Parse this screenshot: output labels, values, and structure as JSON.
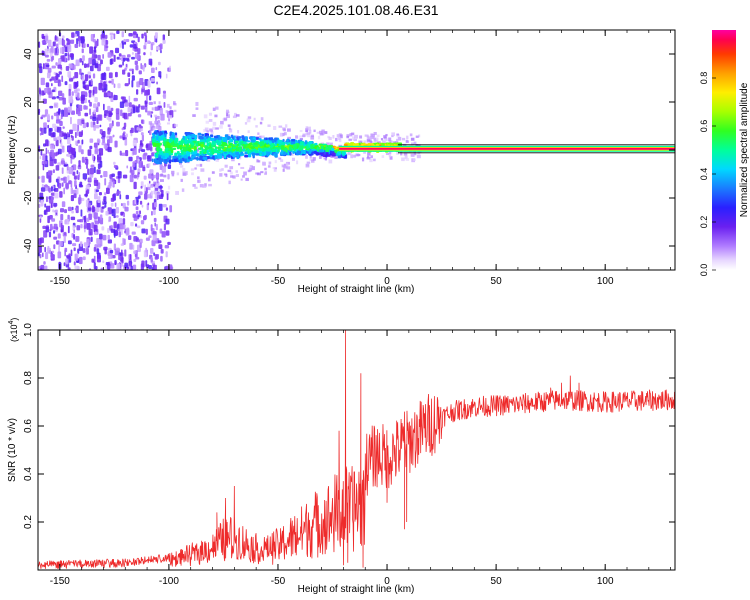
{
  "title": "C2E4.2025.101.08.46.E31",
  "chart_data": [
    {
      "type": "heatmap",
      "xlabel": "Height of straight line (km)",
      "ylabel": "Frequency (Hz)",
      "xlim": [
        -160,
        132
      ],
      "ylim": [
        -50,
        50
      ],
      "xticks": [
        -150,
        -100,
        -50,
        0,
        50,
        100
      ],
      "yticks": [
        -40,
        -20,
        0,
        20,
        40
      ],
      "colorbar": {
        "label": "Normalized spectral amplitude",
        "range": [
          0,
          1
        ],
        "ticks": [
          "0.0",
          "0.2",
          "0.4",
          "0.6",
          "0.8"
        ]
      },
      "features": {
        "noise_region_x": [
          -160,
          -100
        ],
        "scatter_band_x": [
          -108,
          5
        ],
        "carrier_line_x": [
          5,
          132
        ],
        "carrier_freq_hz": 0.5,
        "carrier_amplitude": 0.97
      }
    },
    {
      "type": "line",
      "xlabel": "Height of straight line (km)",
      "ylabel": "SNR (10 * v/v)",
      "yscale_label": "(x10",
      "yscale_exp": "4",
      "xlim": [
        -160,
        132
      ],
      "ylim": [
        0,
        1.0
      ],
      "xticks": [
        -150,
        -100,
        -50,
        0,
        50,
        100
      ],
      "yticks": [
        "0.2",
        "0.4",
        "0.6",
        "0.8",
        "1.0"
      ],
      "series": [
        {
          "color": "#ee2b2b",
          "envelope": [
            {
              "x": -160,
              "y": 0.02
            },
            {
              "x": -120,
              "y": 0.03
            },
            {
              "x": -100,
              "y": 0.05
            },
            {
              "x": -90,
              "y": 0.08
            },
            {
              "x": -80,
              "y": 0.13
            },
            {
              "x": -75,
              "y": 0.18
            },
            {
              "x": -70,
              "y": 0.19
            },
            {
              "x": -65,
              "y": 0.15
            },
            {
              "x": -58,
              "y": 0.11
            },
            {
              "x": -50,
              "y": 0.14
            },
            {
              "x": -42,
              "y": 0.2
            },
            {
              "x": -35,
              "y": 0.27
            },
            {
              "x": -28,
              "y": 0.3
            },
            {
              "x": -23,
              "y": 0.35
            },
            {
              "x": -20,
              "y": 0.38
            },
            {
              "x": -17,
              "y": 0.36
            },
            {
              "x": -12,
              "y": 0.42
            },
            {
              "x": -5,
              "y": 0.48
            },
            {
              "x": 0,
              "y": 0.47
            },
            {
              "x": 5,
              "y": 0.5
            },
            {
              "x": 12,
              "y": 0.55
            },
            {
              "x": 20,
              "y": 0.61
            },
            {
              "x": 30,
              "y": 0.66
            },
            {
              "x": 40,
              "y": 0.68
            },
            {
              "x": 60,
              "y": 0.69
            },
            {
              "x": 80,
              "y": 0.71
            },
            {
              "x": 100,
              "y": 0.7
            },
            {
              "x": 132,
              "y": 0.71
            }
          ],
          "spikes": [
            {
              "x": -19,
              "y": 1.0
            },
            {
              "x": -12,
              "y": 0.82
            },
            {
              "x": -22,
              "y": 0.58
            },
            {
              "x": -70,
              "y": 0.35
            },
            {
              "x": -74,
              "y": 0.3
            },
            {
              "x": -78,
              "y": 0.24
            },
            {
              "x": 8,
              "y": 0.66
            },
            {
              "x": 5,
              "y": 0.55
            },
            {
              "x": 84,
              "y": 0.81
            },
            {
              "x": 80,
              "y": 0.78
            },
            {
              "x": 88,
              "y": 0.78
            },
            {
              "x": 75,
              "y": 0.76
            }
          ],
          "dips": [
            {
              "x": -20,
              "y": 0.02
            },
            {
              "x": -18,
              "y": 0.03
            },
            {
              "x": -11,
              "y": 0.01
            },
            {
              "x": 0,
              "y": 0.28
            },
            {
              "x": 8,
              "y": 0.17
            },
            {
              "x": 9,
              "y": 0.2
            }
          ]
        }
      ]
    }
  ]
}
